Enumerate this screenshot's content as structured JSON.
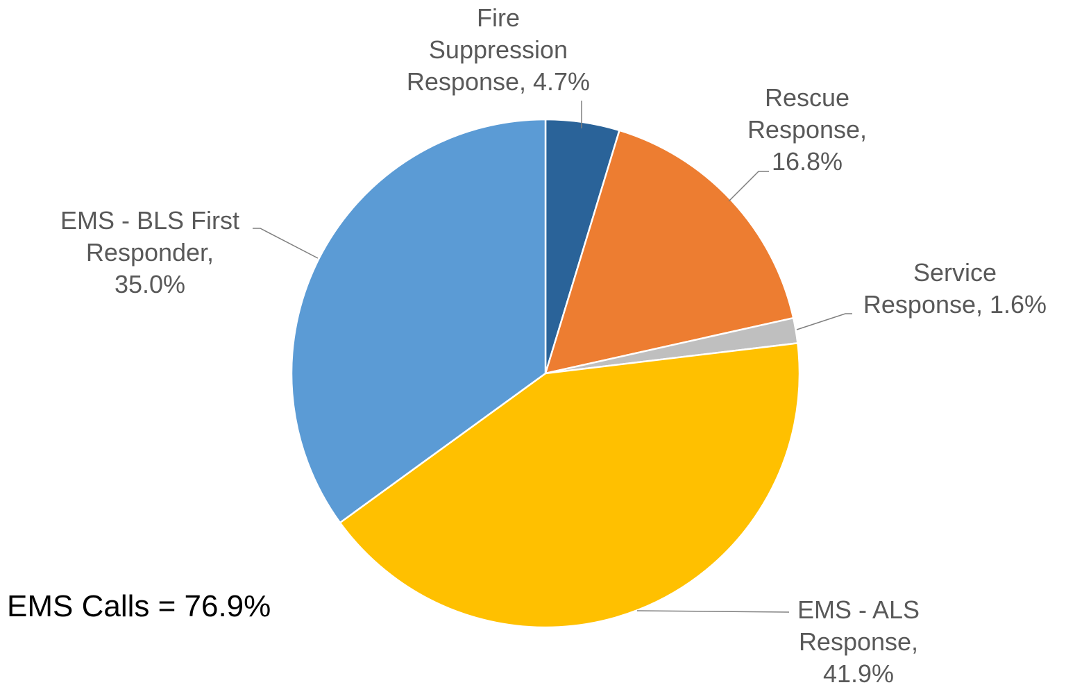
{
  "chart_data": {
    "type": "pie",
    "start_angle_deg": 0,
    "direction": "clockwise",
    "slices": [
      {
        "label_lines": [
          "Fire",
          "Suppression",
          "Response, 4.7%"
        ],
        "value": 4.7,
        "color": "#2A6399"
      },
      {
        "label_lines": [
          "Rescue",
          "Response,",
          "16.8%"
        ],
        "value": 16.8,
        "color": "#ED7D31"
      },
      {
        "label_lines": [
          "Service",
          "Response, 1.6%"
        ],
        "value": 1.6,
        "color": "#BFBFBF"
      },
      {
        "label_lines": [
          "EMS - ALS",
          "Response,",
          "41.9%"
        ],
        "value": 41.9,
        "color": "#FFC000"
      },
      {
        "label_lines": [
          "EMS - BLS First",
          "Responder,",
          "35.0%"
        ],
        "value": 35.0,
        "color": "#5B9BD5"
      }
    ],
    "annotation": "EMS Calls = 76.9%"
  }
}
